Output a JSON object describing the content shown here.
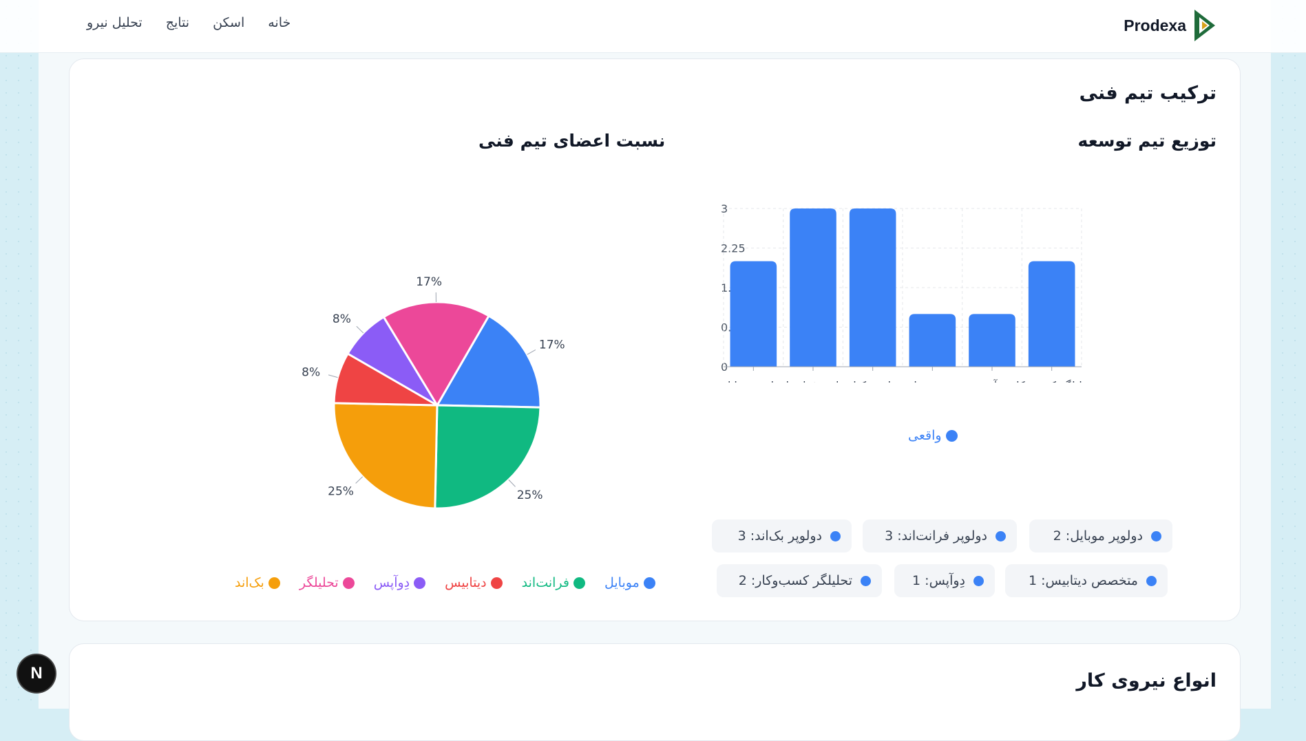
{
  "brand": {
    "name": "Prodexa"
  },
  "nav": {
    "items": [
      "خانه",
      "اسکن",
      "نتایج",
      "تحلیل نیرو"
    ]
  },
  "section1": {
    "title": "ترکیب تیم فنی",
    "bar_title": "توزیع تیم توسعه",
    "pie_title": "نسبت اعضای تیم فنی",
    "bar_legend": "واقعی",
    "stats": [
      "دولوپر موبایل: 2",
      "دولوپر فرانت‌اند: 3",
      "دولوپر بک‌اند: 3",
      "متخصص دیتابیس: 1",
      "دِوآپس: 1",
      "تحلیلگر کسب‌وکار: 2"
    ]
  },
  "section2": {
    "title": "انواع نیروی کار"
  },
  "chart_data": [
    {
      "type": "bar",
      "title": "توزیع تیم توسعه",
      "categories": [
        "دولوپر موبایل",
        "دولوپر فرانت‌اند",
        "دولوپر بک‌اند",
        "متخصص دیتابیس",
        "دِوآپس",
        "تحلیلگر کسب‌وکار"
      ],
      "series": [
        {
          "name": "واقعی",
          "values": [
            2,
            3,
            3,
            1,
            1,
            2
          ],
          "color": "#3b82f6"
        }
      ],
      "ytick_labels": [
        "0",
        "0.75",
        "1.5",
        "2.25",
        "3"
      ],
      "ylim": [
        0,
        3
      ],
      "grid": true,
      "legend": "bottom"
    },
    {
      "type": "pie",
      "title": "نسبت اعضای تیم فنی",
      "slices": [
        {
          "label": "موبایل",
          "value": 17,
          "pct": "17%",
          "color": "#3b82f6"
        },
        {
          "label": "فرانت‌اند",
          "value": 25,
          "pct": "25%",
          "color": "#10b981"
        },
        {
          "label": "بک‌اند",
          "value": 25,
          "pct": "25%",
          "color": "#f59e0b"
        },
        {
          "label": "دیتابیس",
          "value": 8,
          "pct": "8%",
          "color": "#ef4444"
        },
        {
          "label": "دِوآپس",
          "value": 8,
          "pct": "8%",
          "color": "#8b5cf6"
        },
        {
          "label": "تحلیلگر",
          "value": 17,
          "pct": "17%",
          "color": "#ec4899"
        }
      ],
      "legend_order": [
        "موبایل",
        "فرانت‌اند",
        "دیتابیس",
        "دِوآپس",
        "تحلیلگر",
        "بک‌اند"
      ],
      "legend": "bottom"
    }
  ],
  "badge": {
    "label": "N"
  }
}
